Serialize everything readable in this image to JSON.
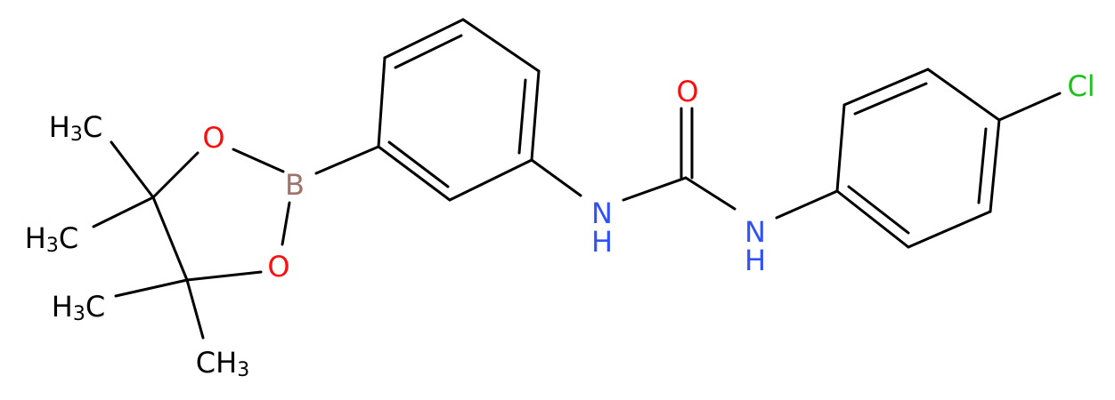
{
  "atoms": [
    {
      "text": "H",
      "sub": "3",
      "tail": "C"
    },
    {
      "text": "H",
      "sub": "3",
      "tail": "C"
    },
    {
      "text": "H",
      "sub": "3",
      "tail": "C"
    },
    {
      "text": "CH",
      "sub": "3"
    },
    {
      "text": "O"
    },
    {
      "text": "O"
    },
    {
      "text": "B"
    },
    {
      "text": "N"
    },
    {
      "text": "H"
    },
    {
      "text": "O"
    },
    {
      "text": "N"
    },
    {
      "text": "H"
    },
    {
      "text": "Cl"
    }
  ]
}
